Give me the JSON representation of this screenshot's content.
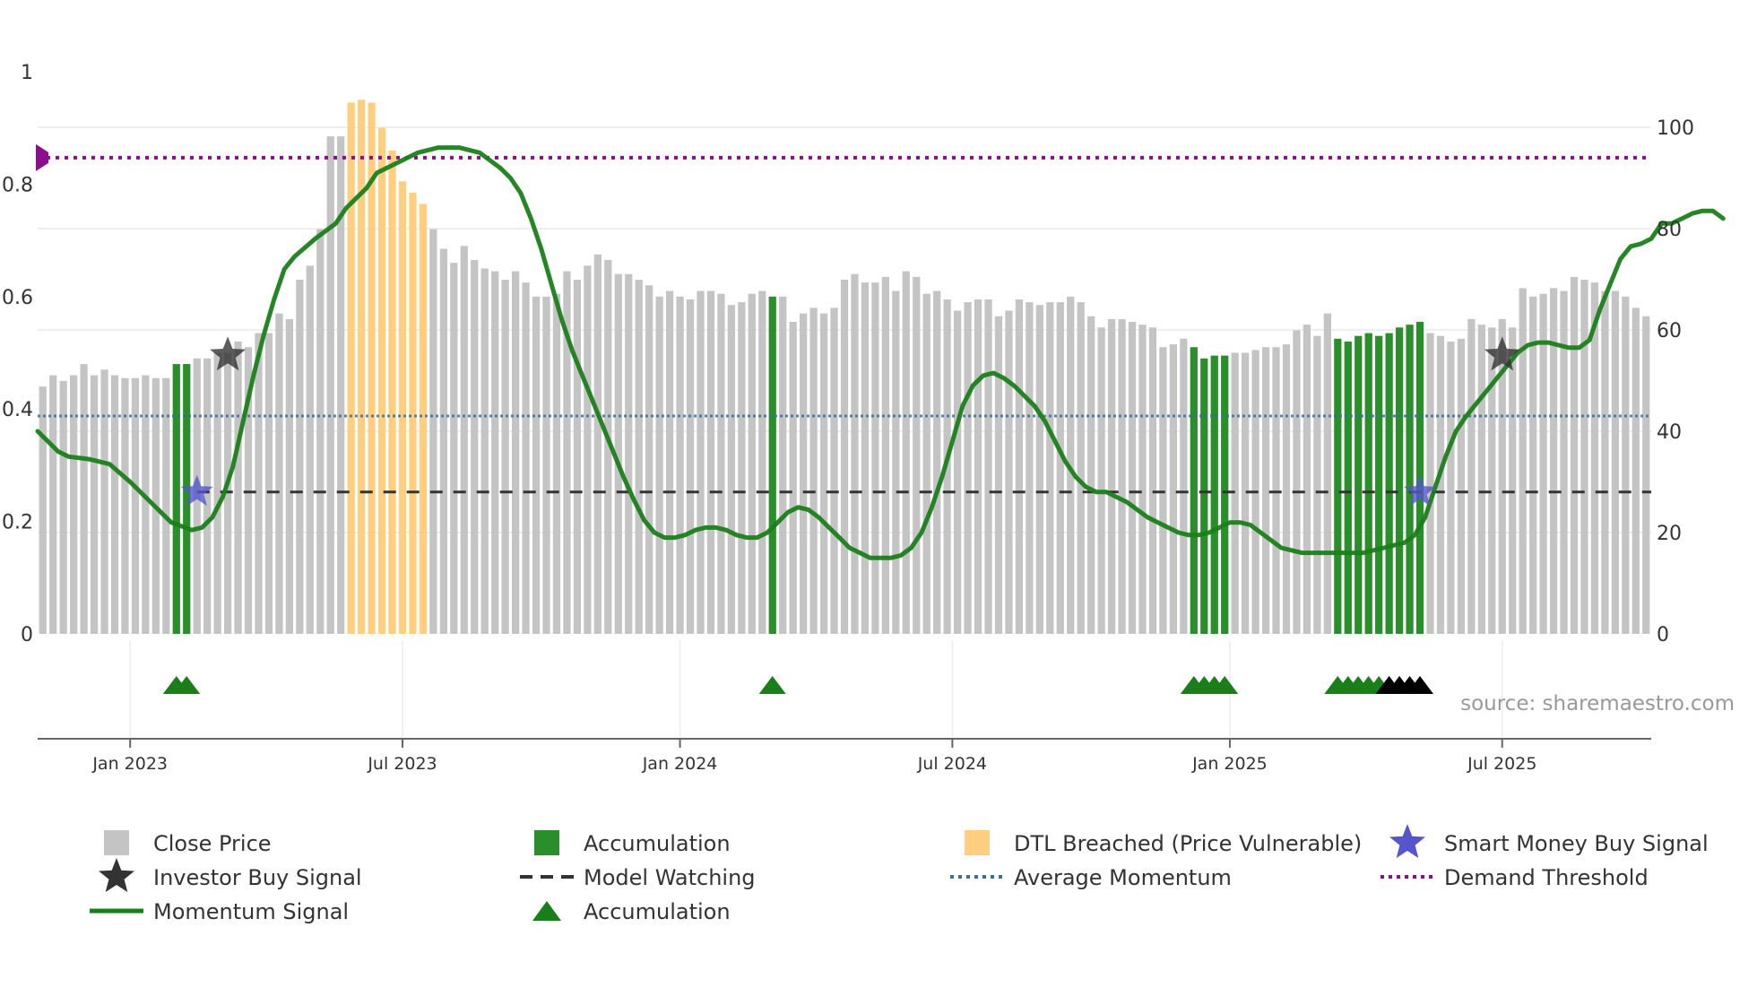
{
  "source_label": "source: sharemaestro.com",
  "colors": {
    "close_price": "#c4c4c4",
    "accumulation": "#2a8f2a",
    "dtl_breached": "#ffcf7f",
    "momentum": "#1a7f1a",
    "average_momentum": "#3a6f9a",
    "demand_threshold": "#8b0f8b",
    "model_watching": "#333333",
    "smart_money": "#5555cc",
    "investor_signal": "#333333",
    "accumulation_marker": "#1a7f1a",
    "watching_marker": "#000000"
  },
  "chart_data": {
    "type": "bar",
    "xlim": [
      0,
      160
    ],
    "y_left_ticks": [
      {
        "label": "0",
        "v": 0
      },
      {
        "label": "0.2",
        "v": 0.2
      },
      {
        "label": "0.4",
        "v": 0.4
      },
      {
        "label": "0.6",
        "v": 0.6
      },
      {
        "label": "0.8",
        "v": 0.8
      },
      {
        "label": "1",
        "v": 1
      }
    ],
    "y_right_ticks": [
      {
        "label": "0",
        "v": 0
      },
      {
        "label": "20",
        "v": 20
      },
      {
        "label": "40",
        "v": 40
      },
      {
        "label": "60",
        "v": 60
      },
      {
        "label": "80",
        "v": 80
      },
      {
        "label": "100",
        "v": 100
      }
    ],
    "y_right_range": [
      0,
      100
    ],
    "x_ticks": [
      {
        "label": "Jan 2023",
        "pos": 9.0
      },
      {
        "label": "Jul 2023",
        "pos": 35.5
      },
      {
        "label": "Jan 2024",
        "pos": 62.5
      },
      {
        "label": "Jul 2024",
        "pos": 89.0
      },
      {
        "label": "Jan 2025",
        "pos": 116.0
      },
      {
        "label": "Jul 2025",
        "pos": 142.5
      }
    ],
    "close_price": [
      0.44,
      0.46,
      0.45,
      0.46,
      0.48,
      0.46,
      0.47,
      0.46,
      0.455,
      0.455,
      0.46,
      0.455,
      0.455,
      0.48,
      0.48,
      0.49,
      0.49,
      0.5,
      0.5,
      0.52,
      0.51,
      0.535,
      0.535,
      0.57,
      0.56,
      0.63,
      0.655,
      0.72,
      0.885,
      0.885,
      0.945,
      0.95,
      0.945,
      0.9,
      0.86,
      0.805,
      0.785,
      0.765,
      0.72,
      0.685,
      0.66,
      0.69,
      0.665,
      0.65,
      0.645,
      0.63,
      0.645,
      0.625,
      0.6,
      0.6,
      0.605,
      0.645,
      0.63,
      0.655,
      0.675,
      0.665,
      0.64,
      0.64,
      0.63,
      0.62,
      0.6,
      0.61,
      0.6,
      0.595,
      0.61,
      0.61,
      0.605,
      0.585,
      0.59,
      0.605,
      0.61,
      0.6,
      0.6,
      0.555,
      0.57,
      0.58,
      0.57,
      0.58,
      0.63,
      0.64,
      0.625,
      0.625,
      0.635,
      0.61,
      0.645,
      0.635,
      0.605,
      0.61,
      0.595,
      0.575,
      0.59,
      0.595,
      0.595,
      0.565,
      0.575,
      0.595,
      0.59,
      0.585,
      0.59,
      0.59,
      0.6,
      0.59,
      0.565,
      0.545,
      0.56,
      0.56,
      0.555,
      0.55,
      0.545,
      0.51,
      0.515,
      0.525,
      0.51,
      0.49,
      0.495,
      0.495,
      0.5,
      0.5,
      0.505,
      0.51,
      0.51,
      0.515,
      0.54,
      0.55,
      0.53,
      0.57,
      0.525,
      0.52,
      0.53,
      0.535,
      0.53,
      0.535,
      0.545,
      0.55,
      0.555,
      0.535,
      0.53,
      0.52,
      0.525,
      0.56,
      0.55,
      0.545,
      0.56,
      0.545,
      0.615,
      0.6,
      0.605,
      0.615,
      0.61,
      0.635,
      0.63,
      0.625,
      0.61,
      0.61,
      0.6,
      0.58,
      0.565
    ],
    "accumulation_bars": [
      13,
      14,
      71,
      112,
      113,
      114,
      115,
      126,
      127,
      128,
      129,
      130,
      131,
      132,
      133,
      134
    ],
    "dtl_breached_bars": [
      30,
      31,
      32,
      33,
      34,
      35,
      36,
      37
    ],
    "momentum_signal": [
      [
        0,
        40
      ],
      [
        0.5,
        39
      ],
      [
        1,
        38
      ],
      [
        2,
        36
      ],
      [
        3,
        35
      ],
      [
        5,
        34.5
      ],
      [
        7,
        33.5
      ],
      [
        9,
        30
      ],
      [
        11,
        26
      ],
      [
        13,
        22
      ],
      [
        15,
        20.5
      ],
      [
        16,
        21
      ],
      [
        17,
        23
      ],
      [
        18,
        27
      ],
      [
        19,
        33
      ],
      [
        20,
        42
      ],
      [
        21,
        51
      ],
      [
        22,
        59
      ],
      [
        23,
        66
      ],
      [
        24,
        72
      ],
      [
        25,
        74.5
      ],
      [
        27,
        78
      ],
      [
        29,
        81
      ],
      [
        30,
        84
      ],
      [
        32,
        88
      ],
      [
        33,
        91
      ],
      [
        35,
        93
      ],
      [
        37,
        95
      ],
      [
        39,
        96
      ],
      [
        41,
        96
      ],
      [
        43,
        95
      ],
      [
        45,
        92
      ],
      [
        46,
        90
      ],
      [
        47,
        87
      ],
      [
        48,
        82
      ],
      [
        49,
        76
      ],
      [
        50,
        69
      ],
      [
        51,
        62
      ],
      [
        52,
        56
      ],
      [
        53,
        51
      ],
      [
        54,
        46
      ],
      [
        55,
        41
      ],
      [
        56,
        36
      ],
      [
        57,
        31
      ],
      [
        58,
        26.5
      ],
      [
        59,
        22.5
      ],
      [
        60,
        20
      ],
      [
        61,
        19
      ],
      [
        62,
        19
      ],
      [
        63,
        19.5
      ],
      [
        64,
        20.5
      ],
      [
        65,
        21
      ],
      [
        66,
        21
      ],
      [
        67,
        20.5
      ],
      [
        68,
        19.5
      ],
      [
        69,
        19
      ],
      [
        70,
        19
      ],
      [
        71,
        20
      ],
      [
        72,
        22
      ],
      [
        73,
        24
      ],
      [
        74,
        25
      ],
      [
        75,
        24.5
      ],
      [
        76,
        23
      ],
      [
        77,
        21
      ],
      [
        78,
        19
      ],
      [
        79,
        17
      ],
      [
        80,
        16
      ],
      [
        81,
        15
      ],
      [
        82,
        15
      ],
      [
        83,
        15
      ],
      [
        84,
        15.5
      ],
      [
        85,
        17
      ],
      [
        86,
        20
      ],
      [
        87,
        25
      ],
      [
        88,
        31
      ],
      [
        89,
        38
      ],
      [
        90,
        45
      ],
      [
        91,
        49
      ],
      [
        92,
        51
      ],
      [
        93,
        51.5
      ],
      [
        94,
        50.5
      ],
      [
        95,
        49
      ],
      [
        96,
        47
      ],
      [
        97,
        45
      ],
      [
        98,
        42
      ],
      [
        99,
        38
      ],
      [
        100,
        34
      ],
      [
        101,
        31
      ],
      [
        102,
        29
      ],
      [
        103,
        28
      ],
      [
        104,
        28
      ],
      [
        105,
        27
      ],
      [
        106,
        26
      ],
      [
        107,
        24.5
      ],
      [
        108,
        23
      ],
      [
        109,
        22
      ],
      [
        110,
        21
      ],
      [
        111,
        20
      ],
      [
        112,
        19.5
      ],
      [
        113,
        19.5
      ],
      [
        114,
        20
      ],
      [
        115,
        21
      ],
      [
        116,
        22
      ],
      [
        117,
        22
      ],
      [
        118,
        21.5
      ],
      [
        119,
        20
      ],
      [
        120,
        18.5
      ],
      [
        121,
        17
      ],
      [
        122,
        16.5
      ],
      [
        123,
        16
      ],
      [
        124,
        16
      ],
      [
        126,
        16
      ],
      [
        128,
        16
      ],
      [
        129,
        16
      ],
      [
        130,
        16.5
      ],
      [
        131,
        17
      ],
      [
        132,
        17.5
      ],
      [
        133,
        18
      ],
      [
        134,
        19.5
      ],
      [
        135,
        23
      ],
      [
        136,
        29
      ],
      [
        137,
        35
      ],
      [
        138,
        40
      ],
      [
        139,
        43
      ],
      [
        140,
        45.5
      ],
      [
        141,
        48
      ],
      [
        142,
        50.5
      ],
      [
        143,
        53
      ],
      [
        144,
        55.5
      ],
      [
        145,
        57
      ],
      [
        146,
        57.5
      ],
      [
        147,
        57.5
      ],
      [
        148,
        57
      ],
      [
        149,
        56.5
      ],
      [
        150,
        56.5
      ],
      [
        151,
        58
      ],
      [
        152,
        64
      ],
      [
        153,
        69
      ],
      [
        154,
        74
      ],
      [
        155,
        76.5
      ],
      [
        156,
        77
      ],
      [
        157,
        78
      ],
      [
        158,
        81
      ],
      [
        159,
        81
      ],
      [
        160,
        82
      ],
      [
        161,
        83
      ],
      [
        162,
        83.5
      ],
      [
        163,
        83.5
      ],
      [
        164,
        82
      ]
    ],
    "average_momentum": 43,
    "demand_threshold": 94,
    "model_watching": 28,
    "model_watching_start": 15.5,
    "smart_money_signals": [
      {
        "x": 15.5,
        "y": 28
      },
      {
        "x": 134.5,
        "y": 28
      }
    ],
    "investor_signals": [
      {
        "x": 18.5,
        "y": 55
      },
      {
        "x": 142.5,
        "y": 55
      }
    ],
    "accumulation_markers": [
      13,
      14,
      71,
      112,
      113,
      114,
      115,
      126,
      127,
      128,
      129,
      130
    ],
    "watching_markers": [
      131,
      132,
      133,
      134
    ]
  },
  "legend": [
    {
      "label": "Close Price",
      "kind": "square",
      "color_key": "close_price"
    },
    {
      "label": "Accumulation",
      "kind": "square",
      "color_key": "accumulation"
    },
    {
      "label": "DTL Breached (Price Vulnerable)",
      "kind": "square",
      "color_key": "dtl_breached"
    },
    {
      "label": "Smart Money Buy Signal",
      "kind": "star",
      "color_key": "smart_money"
    },
    {
      "label": "Investor Buy Signal",
      "kind": "star",
      "color_key": "investor_signal"
    },
    {
      "label": "Model Watching",
      "kind": "dash",
      "color_key": "model_watching"
    },
    {
      "label": "Average Momentum",
      "kind": "dot",
      "color_key": "average_momentum"
    },
    {
      "label": "Demand Threshold",
      "kind": "dot",
      "color_key": "demand_threshold"
    },
    {
      "label": "Momentum Signal",
      "kind": "line",
      "color_key": "momentum"
    },
    {
      "label": "Accumulation",
      "kind": "triangle",
      "color_key": "accumulation_marker"
    }
  ]
}
